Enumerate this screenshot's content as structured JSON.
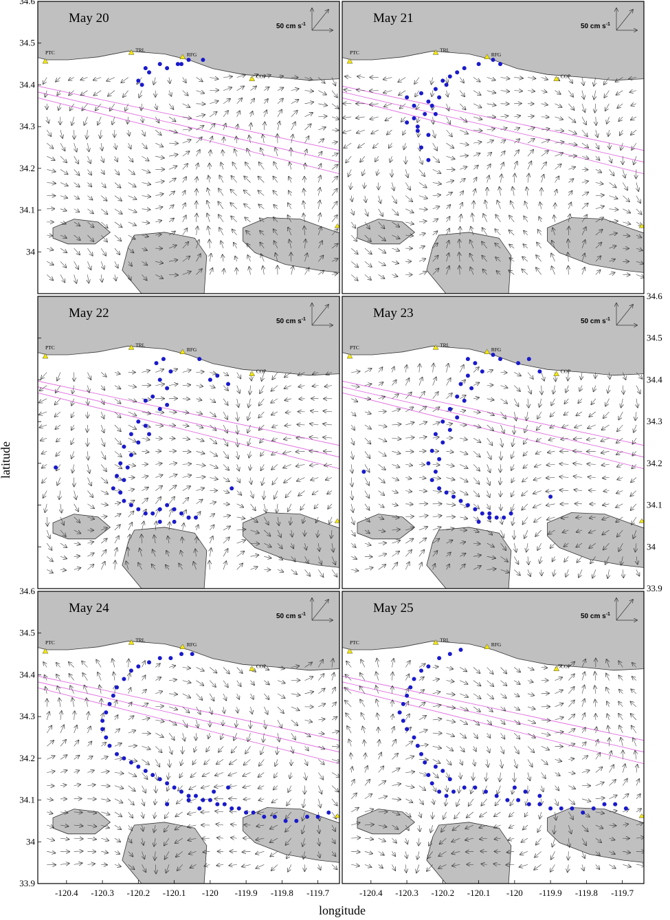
{
  "figure": {
    "xlabel": "longitude",
    "ylabel": "latitude",
    "xticks": [
      "-120.4",
      "-120.3",
      "-120.2",
      "-120.1",
      "-120",
      "-119.9",
      "-119.8",
      "-119.7"
    ],
    "yticks": [
      "34.6",
      "34.5",
      "34.4",
      "34.3",
      "34.2",
      "34.1",
      "34",
      "33.9"
    ],
    "scale_label": "50 cm s",
    "scale_exp": "-1",
    "stations": [
      "PTC",
      "TRL",
      "RFG",
      "COP"
    ],
    "colors": {
      "land": "#c0c0c0",
      "drifter": "#1a1acc",
      "track": "#e06ce0",
      "station": "#f2e600",
      "vector": "#333333"
    }
  },
  "chart_data": [
    {
      "type": "scatter",
      "title": "May 20",
      "xlim": [
        -120.48,
        -119.64
      ],
      "ylim": [
        33.9,
        34.6
      ],
      "x": [
        -120.19,
        -120.17,
        -120.12,
        -120.09,
        -120.06,
        -120.02,
        -120.2,
        -120.18,
        -120.14,
        -120.08
      ],
      "y": [
        34.4,
        34.43,
        34.44,
        34.45,
        34.46,
        34.46,
        34.41,
        34.44,
        34.45,
        34.45
      ]
    },
    {
      "type": "scatter",
      "title": "May 21",
      "xlim": [
        -120.48,
        -119.64
      ],
      "ylim": [
        33.9,
        34.6
      ],
      "x": [
        -120.3,
        -120.28,
        -120.26,
        -120.24,
        -120.22,
        -120.2,
        -120.18,
        -120.16,
        -120.28,
        -120.25,
        -120.23,
        -120.21,
        -120.19,
        -120.27,
        -120.24,
        -120.22,
        -120.3,
        -120.27,
        -120.26,
        -120.24,
        -120.14,
        -120.1,
        -120.06,
        -120.04
      ],
      "y": [
        34.37,
        34.35,
        34.38,
        34.36,
        34.39,
        34.41,
        34.42,
        34.43,
        34.32,
        34.33,
        34.35,
        34.37,
        34.4,
        34.3,
        34.28,
        34.33,
        34.31,
        34.29,
        34.25,
        34.22,
        34.44,
        34.45,
        34.46,
        34.45
      ]
    },
    {
      "type": "scatter",
      "title": "May 22",
      "xlim": [
        -120.48,
        -119.64
      ],
      "ylim": [
        33.9,
        34.6
      ],
      "x": [
        -120.15,
        -120.13,
        -120.11,
        -120.14,
        -120.12,
        -120.16,
        -120.18,
        -120.14,
        -120.12,
        -120.2,
        -120.18,
        -120.17,
        -120.22,
        -120.2,
        -120.24,
        -120.22,
        -120.25,
        -120.23,
        -120.26,
        -120.24,
        -120.27,
        -120.25,
        -120.24,
        -120.22,
        -120.2,
        -120.18,
        -120.16,
        -120.14,
        -120.12,
        -120.1,
        -120.08,
        -120.06,
        -120.04,
        -120.14,
        -120.1,
        -120.06,
        -120.03,
        -120.0,
        -119.98,
        -119.95,
        -120.43,
        -119.94
      ],
      "y": [
        34.44,
        34.45,
        34.42,
        34.4,
        34.38,
        34.36,
        34.35,
        34.33,
        34.34,
        34.3,
        34.29,
        34.27,
        34.27,
        34.25,
        34.24,
        34.22,
        34.2,
        34.19,
        34.17,
        34.16,
        34.14,
        34.13,
        34.11,
        34.1,
        34.09,
        34.08,
        34.08,
        34.09,
        34.1,
        34.09,
        34.08,
        34.07,
        34.07,
        34.06,
        34.06,
        34.07,
        34.45,
        34.4,
        34.41,
        34.39,
        34.19,
        34.14
      ]
    },
    {
      "type": "scatter",
      "title": "May 23",
      "xlim": [
        -120.48,
        -119.64
      ],
      "ylim": [
        33.9,
        34.6
      ],
      "x": [
        -120.13,
        -120.11,
        -120.09,
        -120.13,
        -120.15,
        -120.12,
        -120.16,
        -120.14,
        -120.18,
        -120.16,
        -120.2,
        -120.18,
        -120.22,
        -120.2,
        -120.23,
        -120.21,
        -120.24,
        -120.22,
        -120.23,
        -120.21,
        -120.19,
        -120.17,
        -120.15,
        -120.13,
        -120.11,
        -120.09,
        -120.07,
        -120.05,
        -120.03,
        -120.01,
        -120.1,
        -120.07,
        -119.99,
        -119.96,
        -119.93,
        -120.42,
        -119.9,
        -120.06,
        -120.04
      ],
      "y": [
        34.45,
        34.44,
        34.42,
        34.41,
        34.39,
        34.38,
        34.36,
        34.35,
        34.33,
        34.31,
        34.3,
        34.28,
        34.27,
        34.25,
        34.23,
        34.21,
        34.2,
        34.18,
        34.16,
        34.14,
        34.13,
        34.12,
        34.11,
        34.1,
        34.09,
        34.08,
        34.08,
        34.07,
        34.07,
        34.08,
        34.06,
        34.07,
        34.44,
        34.45,
        34.42,
        34.18,
        34.12,
        34.46,
        34.45
      ]
    },
    {
      "type": "scatter",
      "title": "May 24",
      "xlim": [
        -120.48,
        -119.64
      ],
      "ylim": [
        33.9,
        34.6
      ],
      "x": [
        -120.05,
        -120.08,
        -120.11,
        -120.14,
        -120.17,
        -120.2,
        -120.22,
        -120.24,
        -120.26,
        -120.27,
        -120.28,
        -120.29,
        -120.3,
        -120.3,
        -120.29,
        -120.28,
        -120.26,
        -120.24,
        -120.22,
        -120.2,
        -120.18,
        -120.16,
        -120.14,
        -120.12,
        -120.1,
        -120.08,
        -120.06,
        -120.04,
        -120.02,
        -120.0,
        -119.98,
        -119.96,
        -119.94,
        -119.92,
        -119.9,
        -119.88,
        -119.85,
        -119.82,
        -119.79,
        -119.76,
        -119.73,
        -119.7,
        -119.67,
        -120.12,
        -120.06,
        -119.99,
        -119.95,
        -120.03
      ],
      "y": [
        34.45,
        34.45,
        34.44,
        34.44,
        34.43,
        34.42,
        34.41,
        34.39,
        34.37,
        34.35,
        34.33,
        34.31,
        34.29,
        34.27,
        34.25,
        34.23,
        34.21,
        34.2,
        34.19,
        34.18,
        34.17,
        34.16,
        34.15,
        34.14,
        34.13,
        34.12,
        34.11,
        34.11,
        34.1,
        34.1,
        34.09,
        34.09,
        34.08,
        34.08,
        34.07,
        34.07,
        34.06,
        34.06,
        34.05,
        34.05,
        34.06,
        34.06,
        34.07,
        34.09,
        34.1,
        34.12,
        34.13,
        34.08
      ]
    },
    {
      "type": "scatter",
      "title": "May 25",
      "xlim": [
        -120.48,
        -119.64
      ],
      "ylim": [
        33.9,
        34.6
      ],
      "x": [
        -120.15,
        -120.18,
        -120.21,
        -120.24,
        -120.26,
        -120.28,
        -120.29,
        -120.3,
        -120.31,
        -120.32,
        -120.31,
        -120.3,
        -120.28,
        -120.27,
        -120.26,
        -120.25,
        -120.24,
        -120.23,
        -120.21,
        -120.19,
        -120.17,
        -120.14,
        -120.11,
        -120.08,
        -120.05,
        -120.02,
        -119.99,
        -119.96,
        -119.93,
        -119.9,
        -119.87,
        -119.84,
        -119.81,
        -119.78,
        -119.75,
        -119.72,
        -119.69,
        -120.0,
        -119.97,
        -119.93,
        -120.2,
        -120.18,
        -120.22
      ],
      "y": [
        34.46,
        34.45,
        34.44,
        34.42,
        34.41,
        34.39,
        34.37,
        34.35,
        34.33,
        34.31,
        34.29,
        34.27,
        34.25,
        34.23,
        34.21,
        34.19,
        34.16,
        34.14,
        34.12,
        34.11,
        34.12,
        34.13,
        34.13,
        34.12,
        34.11,
        34.1,
        34.1,
        34.09,
        34.09,
        34.08,
        34.08,
        34.08,
        34.07,
        34.08,
        34.09,
        34.09,
        34.08,
        34.13,
        34.12,
        34.11,
        34.17,
        34.15,
        34.18
      ]
    }
  ]
}
